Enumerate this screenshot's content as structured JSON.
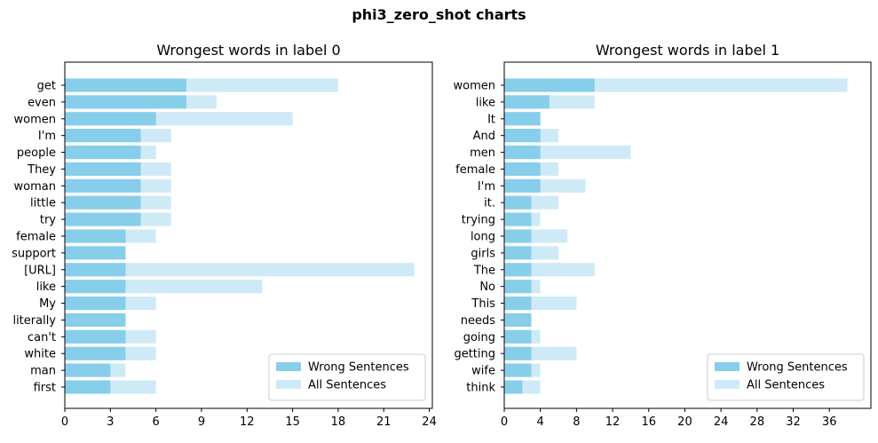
{
  "figure": {
    "suptitle": "phi3_zero_shot charts"
  },
  "colors": {
    "wrong": "#87ceeb",
    "all": "#cfeaf7",
    "axis": "#000000"
  },
  "chart_data": [
    {
      "type": "bar",
      "orientation": "horizontal",
      "title": "Wrongest words in label 0",
      "xlabel": "",
      "ylabel": "",
      "xlim": [
        0,
        24.2
      ],
      "xticks": [
        0,
        3,
        6,
        9,
        12,
        15,
        18,
        21,
        24
      ],
      "legend_position": "lower-right",
      "categories": [
        "get",
        "even",
        "women",
        "I'm",
        "people",
        "They",
        "woman",
        "little",
        "try",
        "female",
        "support",
        "[URL]",
        "like",
        "My",
        "literally",
        "can't",
        "white",
        "man",
        "first"
      ],
      "series": [
        {
          "name": "Wrong Sentences",
          "values": [
            8,
            8,
            6,
            5,
            5,
            5,
            5,
            5,
            5,
            4,
            4,
            4,
            4,
            4,
            4,
            4,
            4,
            3,
            3
          ]
        },
        {
          "name": "All Sentences",
          "values": [
            18,
            10,
            15,
            7,
            6,
            7,
            7,
            7,
            7,
            6,
            4,
            23,
            13,
            6,
            4,
            6,
            6,
            4,
            6
          ]
        }
      ]
    },
    {
      "type": "bar",
      "orientation": "horizontal",
      "title": "Wrongest words in label 1",
      "xlabel": "",
      "ylabel": "",
      "xlim": [
        0,
        40.6
      ],
      "xticks": [
        0,
        4,
        8,
        12,
        16,
        20,
        24,
        28,
        32,
        36
      ],
      "legend_position": "lower-right",
      "categories": [
        "women",
        "like",
        "It",
        "And",
        "men",
        "female",
        "I'm",
        "it.",
        "trying",
        "long",
        "girls",
        "The",
        "No",
        "This",
        "needs",
        "going",
        "getting",
        "wife",
        "think"
      ],
      "series": [
        {
          "name": "Wrong Sentences",
          "values": [
            10,
            5,
            4,
            4,
            4,
            4,
            4,
            3,
            3,
            3,
            3,
            3,
            3,
            3,
            3,
            3,
            3,
            3,
            2
          ]
        },
        {
          "name": "All Sentences",
          "values": [
            38,
            10,
            4,
            6,
            14,
            6,
            9,
            6,
            4,
            7,
            6,
            10,
            4,
            8,
            3,
            4,
            8,
            4,
            4
          ]
        }
      ]
    }
  ]
}
